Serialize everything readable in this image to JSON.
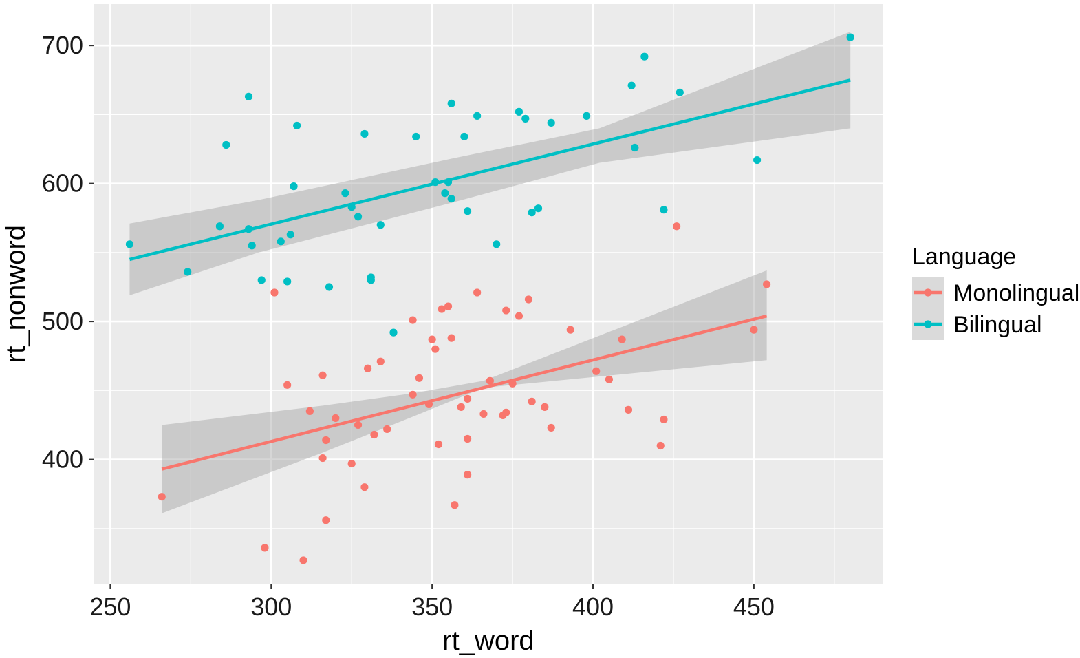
{
  "chart_data": {
    "type": "scatter",
    "xlabel": "rt_word",
    "ylabel": "rt_nonword",
    "xlim": [
      245,
      490
    ],
    "ylim": [
      310,
      730
    ],
    "xticks": [
      250,
      300,
      350,
      400,
      450
    ],
    "yticks": [
      400,
      500,
      600,
      700
    ],
    "grid": true,
    "legend_title": "Language",
    "legend_position": "right",
    "series": [
      {
        "name": "Monolingual",
        "color": "#F8766D",
        "trend": {
          "x": [
            266,
            454
          ],
          "y": [
            393,
            504
          ]
        },
        "band": {
          "x": [
            266,
            316,
            344,
            366,
            454
          ],
          "upper": [
            425,
            439,
            448,
            457,
            537
          ],
          "lower": [
            361,
            405,
            431,
            452,
            472
          ]
        },
        "points": [
          [
            266,
            373
          ],
          [
            298,
            336
          ],
          [
            301,
            521
          ],
          [
            305,
            454
          ],
          [
            310,
            327
          ],
          [
            312,
            435
          ],
          [
            316,
            461
          ],
          [
            316,
            401
          ],
          [
            317,
            414
          ],
          [
            317,
            356
          ],
          [
            320,
            430
          ],
          [
            325,
            397
          ],
          [
            327,
            425
          ],
          [
            329,
            380
          ],
          [
            330,
            466
          ],
          [
            332,
            418
          ],
          [
            334,
            471
          ],
          [
            336,
            422
          ],
          [
            344,
            501
          ],
          [
            344,
            447
          ],
          [
            346,
            459
          ],
          [
            349,
            440
          ],
          [
            350,
            487
          ],
          [
            351,
            480
          ],
          [
            352,
            411
          ],
          [
            353,
            509
          ],
          [
            355,
            511
          ],
          [
            356,
            488
          ],
          [
            357,
            367
          ],
          [
            359,
            438
          ],
          [
            361,
            444
          ],
          [
            361,
            415
          ],
          [
            361,
            389
          ],
          [
            364,
            521
          ],
          [
            366,
            433
          ],
          [
            368,
            457
          ],
          [
            372,
            432
          ],
          [
            373,
            434
          ],
          [
            373,
            508
          ],
          [
            375,
            455
          ],
          [
            377,
            504
          ],
          [
            380,
            516
          ],
          [
            381,
            442
          ],
          [
            385,
            438
          ],
          [
            387,
            423
          ],
          [
            393,
            494
          ],
          [
            401,
            464
          ],
          [
            405,
            458
          ],
          [
            409,
            487
          ],
          [
            411,
            436
          ],
          [
            421,
            410
          ],
          [
            422,
            429
          ],
          [
            426,
            569
          ],
          [
            450,
            494
          ],
          [
            454,
            527
          ]
        ]
      },
      {
        "name": "Bilingual",
        "color": "#00BFC4",
        "trend": {
          "x": [
            256,
            480
          ],
          "y": [
            545,
            675
          ]
        },
        "band": {
          "x": [
            256,
            296,
            356,
            402,
            480
          ],
          "upper": [
            571,
            588,
            618,
            640,
            710
          ],
          "lower": [
            519,
            550,
            586,
            615,
            640
          ]
        },
        "points": [
          [
            256,
            556
          ],
          [
            274,
            536
          ],
          [
            284,
            569
          ],
          [
            286,
            628
          ],
          [
            293,
            567
          ],
          [
            293,
            663
          ],
          [
            294,
            555
          ],
          [
            297,
            530
          ],
          [
            303,
            558
          ],
          [
            305,
            529
          ],
          [
            306,
            563
          ],
          [
            307,
            598
          ],
          [
            308,
            642
          ],
          [
            318,
            525
          ],
          [
            323,
            593
          ],
          [
            325,
            583
          ],
          [
            327,
            576
          ],
          [
            329,
            636
          ],
          [
            331,
            532
          ],
          [
            331,
            530
          ],
          [
            334,
            570
          ],
          [
            338,
            492
          ],
          [
            345,
            634
          ],
          [
            351,
            601
          ],
          [
            354,
            593
          ],
          [
            355,
            601
          ],
          [
            356,
            589
          ],
          [
            356,
            658
          ],
          [
            360,
            634
          ],
          [
            361,
            580
          ],
          [
            364,
            649
          ],
          [
            370,
            556
          ],
          [
            377,
            652
          ],
          [
            379,
            647
          ],
          [
            381,
            579
          ],
          [
            383,
            582
          ],
          [
            387,
            644
          ],
          [
            398,
            649
          ],
          [
            412,
            671
          ],
          [
            413,
            626
          ],
          [
            416,
            692
          ],
          [
            422,
            581
          ],
          [
            427,
            666
          ],
          [
            451,
            617
          ],
          [
            480,
            706
          ]
        ]
      }
    ]
  }
}
